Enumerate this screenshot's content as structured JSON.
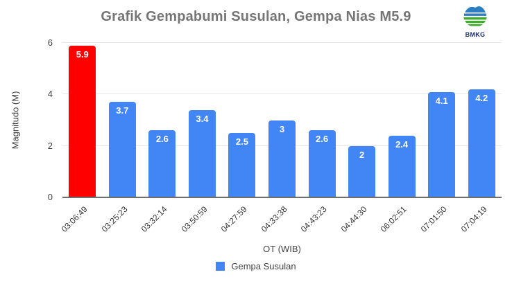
{
  "header": {
    "title": "Grafik Gempabumi Susulan, Gempa Nias M5.9",
    "logo_text": "BMKG"
  },
  "chart_data": {
    "type": "bar",
    "title": "Grafik Gempabumi Susulan, Gempa Nias M5.9",
    "categories": [
      "03:06:49",
      "03:25:23",
      "03:32:14",
      "03:50:59",
      "04:27:59",
      "04:33:38",
      "04:43:23",
      "04:44:30",
      "06:02:51",
      "07:01:50",
      "07:04:19"
    ],
    "values": [
      5.9,
      3.7,
      2.6,
      3.4,
      2.5,
      3,
      2.6,
      2,
      2.4,
      4.1,
      4.2
    ],
    "labels": [
      "5.9",
      "3.7",
      "2.6",
      "3.4",
      "2.5",
      "3",
      "2.6",
      "2",
      "2.4",
      "4.1",
      "4.2"
    ],
    "xlabel": "OT (WIB)",
    "ylabel": "Magnitudo (M)",
    "ylim": [
      0,
      6
    ],
    "yticks": [
      0,
      2,
      4,
      6
    ],
    "grid": true,
    "bar_color": "#4285F4",
    "highlight_index": 0,
    "highlight_color": "#FF0000",
    "legend_position": "bottom",
    "legend_entries": [
      "Gempa Susulan"
    ]
  },
  "axes": {
    "x_title": "OT (WIB)",
    "y_title": "Magnitudo (M)"
  },
  "legend": {
    "label": "Gempa Susulan",
    "swatch_color": "#4285F4"
  },
  "colors": {
    "title_gray": "#757575",
    "gridline": "#e6e6e6",
    "baseline": "#6e6e6e",
    "logo_blue": "#2d7dc1",
    "logo_green": "#3fae2a"
  }
}
